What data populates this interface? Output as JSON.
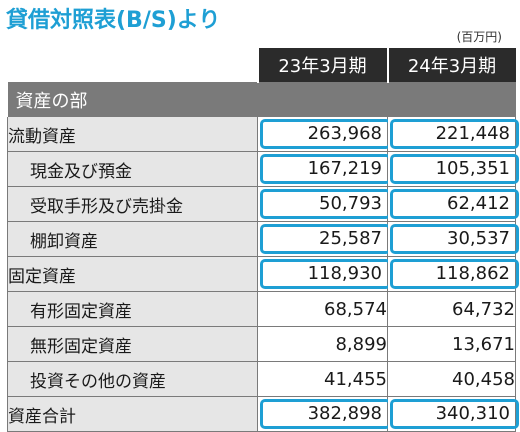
{
  "title": "貸借対照表(B/S)より",
  "unit": "(百万円)",
  "columns": [
    "23年3月期",
    "24年3月期"
  ],
  "section": "資産の部",
  "rows": [
    {
      "label": "流動資産",
      "v1": "263,968",
      "v2": "221,448",
      "indent": false,
      "highlight": true
    },
    {
      "label": "現金及び預金",
      "v1": "167,219",
      "v2": "105,351",
      "indent": true,
      "highlight": true
    },
    {
      "label": "受取手形及び売掛金",
      "v1": "50,793",
      "v2": "62,412",
      "indent": true,
      "highlight": true
    },
    {
      "label": "棚卸資産",
      "v1": "25,587",
      "v2": "30,537",
      "indent": true,
      "highlight": true
    },
    {
      "label": "固定資産",
      "v1": "118,930",
      "v2": "118,862",
      "indent": false,
      "highlight": true
    },
    {
      "label": "有形固定資産",
      "v1": "68,574",
      "v2": "64,732",
      "indent": true,
      "highlight": false
    },
    {
      "label": "無形固定資産",
      "v1": "8,899",
      "v2": "13,671",
      "indent": true,
      "highlight": false
    },
    {
      "label": "投資その他の資産",
      "v1": "41,455",
      "v2": "40,458",
      "indent": true,
      "highlight": false
    },
    {
      "label": "資産合計",
      "v1": "382,898",
      "v2": "340,310",
      "indent": false,
      "highlight": true
    }
  ],
  "colors": {
    "accent": "#1e9fd4",
    "header_bg": "#2b2b2b",
    "section_bg": "#7a7a7a",
    "label_bg": "#e6e6e6"
  }
}
